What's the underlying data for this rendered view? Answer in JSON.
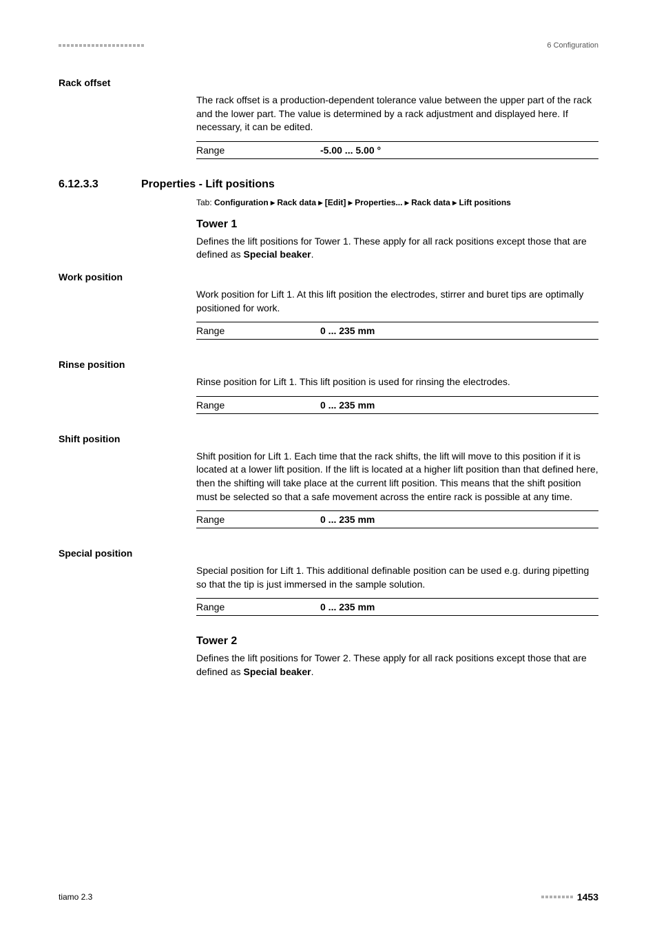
{
  "header": {
    "right": "6 Configuration"
  },
  "rackOffset": {
    "label": "Rack offset",
    "desc": "The rack offset is a production-dependent tolerance value between the upper part of the rack and the lower part. The value is determined by a rack adjustment and displayed here. If necessary, it can be edited.",
    "rangeLabel": "Range",
    "rangeValue": "-5.00 ... 5.00 °"
  },
  "section": {
    "num": "6.12.3.3",
    "title": "Properties - Lift positions",
    "tabPrefix": "Tab: ",
    "tabPath": "Configuration ▸ Rack data ▸ [Edit] ▸ Properties... ▸ Rack data ▸ Lift positions"
  },
  "tower1": {
    "heading": "Tower 1",
    "desc1": "Defines the lift positions for Tower 1. These apply for all rack positions except those that are defined as ",
    "desc1bold": "Special beaker",
    "desc1end": "."
  },
  "workPosition": {
    "label": "Work position",
    "desc": "Work position for Lift 1. At this lift position the electrodes, stirrer and buret tips are optimally positioned for work.",
    "rangeLabel": "Range",
    "rangeValue": "0 ... 235 mm"
  },
  "rinsePosition": {
    "label": "Rinse position",
    "desc": "Rinse position for Lift 1. This lift position is used for rinsing the electrodes.",
    "rangeLabel": "Range",
    "rangeValue": "0 ... 235 mm"
  },
  "shiftPosition": {
    "label": "Shift position",
    "desc": "Shift position for Lift 1. Each time that the rack shifts, the lift will move to this position if it is located at a lower lift position. If the lift is located at a higher lift position than that defined here, then the shifting will take place at the current lift position. This means that the shift position must be selected so that a safe movement across the entire rack is possible at any time.",
    "rangeLabel": "Range",
    "rangeValue": "0 ... 235 mm"
  },
  "specialPosition": {
    "label": "Special position",
    "desc": "Special position for Lift 1. This additional definable position can be used e.g. during pipetting so that the tip is just immersed in the sample solution.",
    "rangeLabel": "Range",
    "rangeValue": "0 ... 235 mm"
  },
  "tower2": {
    "heading": "Tower 2",
    "desc1": "Defines the lift positions for Tower 2. These apply for all rack positions except those that are defined as ",
    "desc1bold": "Special beaker",
    "desc1end": "."
  },
  "footer": {
    "left": "tiamo 2.3",
    "page": "1453"
  }
}
